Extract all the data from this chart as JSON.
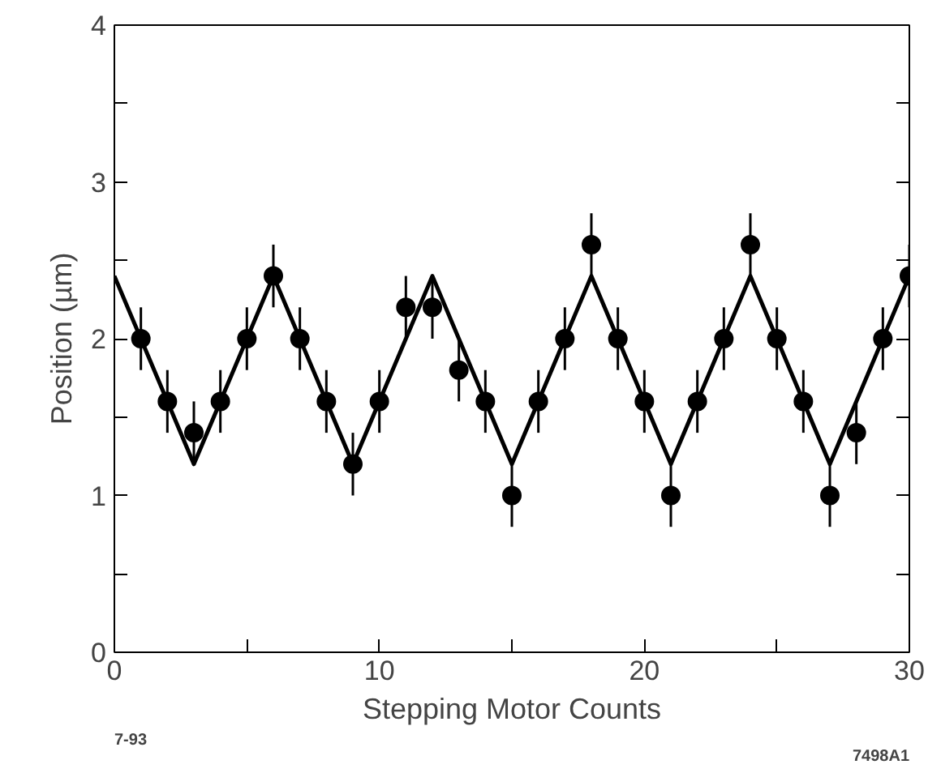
{
  "chart_data": {
    "type": "scatter",
    "xlabel": "Stepping Motor Counts",
    "ylabel": "Position (µm)",
    "annotations": [
      "7-93",
      "7498A1"
    ],
    "xlim": [
      0,
      30
    ],
    "ylim": [
      0,
      4
    ],
    "xticks": [
      0,
      {
        "value": 5,
        "label": null
      },
      10,
      {
        "value": 15,
        "label": null
      },
      20,
      {
        "value": 25,
        "label": null
      },
      30
    ],
    "yticks": [
      0,
      {
        "value": 0.5,
        "label": null
      },
      1,
      {
        "value": 1.5,
        "label": null
      },
      2,
      {
        "value": 2.5,
        "label": null
      },
      3,
      {
        "value": 3.5,
        "label": null
      },
      4
    ],
    "grid": false,
    "marker": "circle",
    "series": [
      {
        "color": "#000000",
        "x": [
          1,
          2,
          3,
          4,
          5,
          6,
          7,
          8,
          9,
          10,
          11,
          12,
          13,
          14,
          15,
          16,
          17,
          18,
          19,
          20,
          21,
          22,
          23,
          24,
          25,
          26,
          27,
          28,
          29,
          30
        ],
        "values": [
          2.0,
          1.6,
          1.4,
          1.6,
          2.0,
          2.4,
          2.0,
          1.6,
          1.2,
          1.6,
          2.2,
          2.2,
          1.8,
          1.6,
          1.0,
          1.6,
          2.0,
          2.6,
          2.0,
          1.6,
          1.0,
          1.6,
          2.0,
          2.6,
          2.0,
          1.6,
          1.0,
          1.4,
          2.0,
          2.4
        ],
        "errors": [
          0.2,
          0.2,
          0.2,
          0.2,
          0.2,
          0.2,
          0.2,
          0.2,
          0.2,
          0.2,
          0.2,
          0.2,
          0.2,
          0.2,
          0.2,
          0.2,
          0.2,
          0.2,
          0.2,
          0.2,
          0.2,
          0.2,
          0.2,
          0.2,
          0.2,
          0.2,
          0.2,
          0.2,
          0.2,
          0.2
        ]
      },
      {
        "type": "line",
        "color": "#000000",
        "marker": "none",
        "line_style": "solid",
        "x": [
          0,
          3,
          6,
          9,
          12,
          15,
          18,
          21,
          24,
          27,
          30
        ],
        "values": [
          2.4,
          1.2,
          2.4,
          1.2,
          2.4,
          1.2,
          2.4,
          1.2,
          2.4,
          1.2,
          2.4
        ]
      }
    ]
  }
}
